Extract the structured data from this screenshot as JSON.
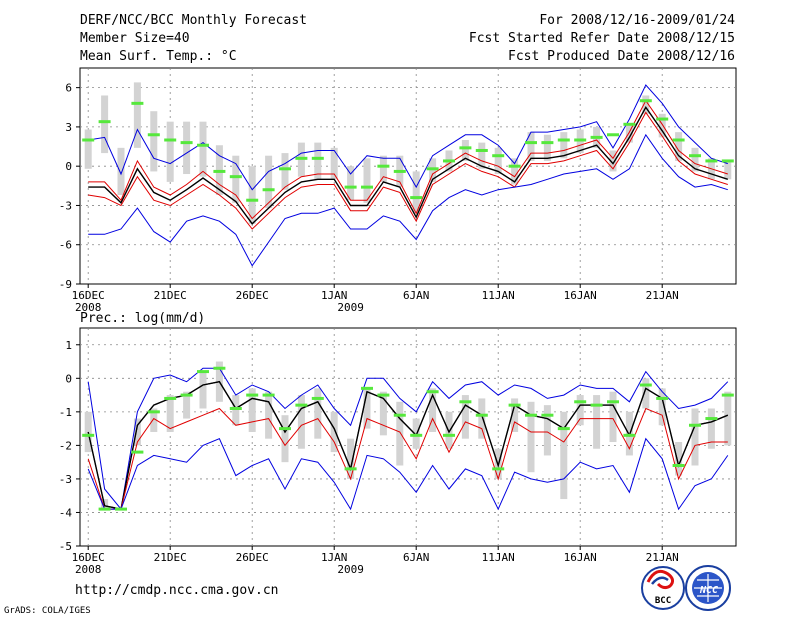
{
  "header": {
    "left_line1": "DERF/NCC/BCC Monthly Forecast",
    "left_line2": "Member Size=40",
    "left_line3": "Mean Surf. Temp.: °C",
    "right_line1": "For 2008/12/16-2009/01/24",
    "right_line2": "Fcst Started Refer Date 2008/12/15",
    "right_line3": "Fcst Produced Date 2008/12/16"
  },
  "footer": {
    "url": "http://cmdp.ncc.cma.gov.cn",
    "credit": "GrADS: COLA/IGES",
    "logo_bcc": "BCC",
    "logo_ncc": "NCC"
  },
  "colors": {
    "bar": "#d3d3d3",
    "median": "#56e83c",
    "envelope": "#0000e0",
    "red": "#e00000",
    "mean": "#000000",
    "grid": "#888888"
  },
  "chart_data": [
    {
      "type": "line",
      "title": "Mean Surf. Temp.: °C",
      "x": [
        1,
        2,
        3,
        4,
        5,
        6,
        7,
        8,
        9,
        10,
        11,
        12,
        13,
        14,
        15,
        16,
        17,
        18,
        19,
        20,
        21,
        22,
        23,
        24,
        25,
        26,
        27,
        28,
        29,
        30,
        31,
        32,
        33,
        34,
        35,
        36,
        37,
        38,
        39,
        40
      ],
      "xlim": [
        0.5,
        40.5
      ],
      "ylim": [
        -9,
        7.5
      ],
      "yticks": [
        -9,
        -6,
        -3,
        0,
        3,
        6
      ],
      "ytick_labels": [
        "-9",
        "-6",
        "-3",
        "0",
        "3",
        "6"
      ],
      "xtick_positions": [
        1,
        6,
        11,
        16,
        21,
        26,
        31,
        36
      ],
      "xtick_labels": [
        "16DEC",
        "21DEC",
        "26DEC",
        "1JAN",
        "6JAN",
        "11JAN",
        "16JAN",
        "21JAN"
      ],
      "year_labels": [
        {
          "x": 1,
          "text": "2008"
        },
        {
          "x": 17,
          "text": "2009"
        }
      ],
      "series": [
        {
          "name": "max",
          "color": "blue",
          "values": [
            2.0,
            2.2,
            -0.6,
            2.8,
            0.6,
            0.2,
            1.0,
            1.8,
            0.8,
            0.2,
            -1.8,
            -0.4,
            0.2,
            1.0,
            1.2,
            1.2,
            -0.6,
            0.8,
            0.6,
            0.6,
            -1.6,
            0.8,
            1.6,
            2.4,
            2.4,
            1.6,
            0.2,
            2.6,
            2.6,
            2.8,
            3.0,
            3.4,
            1.4,
            3.6,
            6.2,
            4.8,
            3.0,
            1.8,
            0.6,
            0.2
          ]
        },
        {
          "name": "upper",
          "color": "red",
          "values": [
            -1.2,
            -1.2,
            -2.6,
            0.4,
            -1.6,
            -2.2,
            -1.4,
            -0.4,
            -1.4,
            -2.2,
            -4.0,
            -2.8,
            -1.6,
            -0.8,
            -0.6,
            -0.6,
            -2.6,
            -2.6,
            -0.8,
            -1.2,
            -3.6,
            -0.6,
            0.2,
            1.0,
            0.4,
            0.0,
            -0.8,
            1.0,
            1.0,
            1.2,
            1.6,
            2.0,
            0.6,
            2.6,
            5.0,
            3.2,
            1.2,
            0.2,
            -0.2,
            -0.6
          ]
        },
        {
          "name": "mean",
          "color": "black",
          "values": [
            -1.6,
            -1.6,
            -2.8,
            -0.2,
            -2.0,
            -2.6,
            -1.8,
            -0.9,
            -1.8,
            -2.7,
            -4.4,
            -3.2,
            -2.0,
            -1.2,
            -1.0,
            -1.0,
            -3.0,
            -3.0,
            -1.2,
            -1.6,
            -3.9,
            -1.0,
            -0.2,
            0.6,
            0.0,
            -0.4,
            -1.2,
            0.6,
            0.6,
            0.8,
            1.2,
            1.6,
            0.2,
            2.2,
            4.5,
            2.7,
            0.8,
            -0.2,
            -0.6,
            -1.0
          ]
        },
        {
          "name": "lower",
          "color": "red",
          "values": [
            -2.2,
            -2.4,
            -3.0,
            -0.8,
            -2.6,
            -3.0,
            -2.2,
            -1.4,
            -2.2,
            -3.2,
            -4.8,
            -3.6,
            -2.4,
            -1.6,
            -1.4,
            -1.4,
            -3.4,
            -3.4,
            -1.6,
            -2.0,
            -4.2,
            -1.4,
            -0.6,
            0.2,
            -0.4,
            -0.8,
            -1.6,
            0.2,
            0.2,
            0.4,
            0.8,
            1.2,
            -0.2,
            1.8,
            4.1,
            2.3,
            0.4,
            -0.6,
            -1.0,
            -1.4
          ]
        },
        {
          "name": "min",
          "color": "blue",
          "values": [
            -5.2,
            -5.2,
            -4.8,
            -3.2,
            -5.0,
            -5.8,
            -4.2,
            -3.8,
            -4.2,
            -5.2,
            -7.6,
            -5.8,
            -4.0,
            -3.6,
            -3.6,
            -3.2,
            -4.8,
            -4.8,
            -3.8,
            -4.2,
            -5.6,
            -3.4,
            -2.4,
            -1.8,
            -2.2,
            -1.8,
            -1.6,
            -1.4,
            -1.0,
            -0.6,
            -0.4,
            -0.2,
            -1.0,
            -0.2,
            2.4,
            0.6,
            -0.8,
            -1.6,
            -1.4,
            -1.8
          ]
        },
        {
          "name": "box_top",
          "color": "lightgray",
          "values": [
            2.8,
            5.4,
            1.4,
            6.4,
            4.2,
            3.4,
            3.4,
            3.4,
            1.6,
            0.8,
            0.0,
            0.8,
            1.0,
            1.8,
            1.8,
            1.4,
            0.0,
            0.6,
            0.8,
            0.8,
            -0.4,
            0.6,
            1.2,
            2.0,
            1.8,
            1.4,
            0.6,
            2.6,
            2.4,
            2.6,
            2.8,
            3.0,
            1.2,
            3.2,
            5.4,
            4.0,
            2.6,
            1.4,
            0.6,
            0.4
          ]
        },
        {
          "name": "box_bottom",
          "color": "lightgray",
          "values": [
            -0.2,
            1.0,
            -2.2,
            1.4,
            -0.4,
            -1.2,
            -0.6,
            -0.8,
            -2.2,
            -2.8,
            -4.4,
            -3.2,
            -1.8,
            -0.8,
            -1.0,
            -1.0,
            -2.6,
            -2.8,
            -1.2,
            -1.6,
            -3.6,
            -1.2,
            -0.4,
            0.4,
            -0.2,
            -0.6,
            -1.4,
            0.4,
            0.4,
            0.6,
            1.0,
            1.4,
            -0.4,
            1.8,
            4.0,
            2.2,
            0.4,
            -0.4,
            -1.0,
            -1.0
          ]
        },
        {
          "name": "median",
          "color": "green",
          "values": [
            2.0,
            3.4,
            null,
            4.8,
            2.4,
            2.0,
            1.8,
            1.6,
            -0.4,
            -0.8,
            -2.6,
            -1.8,
            -0.2,
            0.6,
            0.6,
            null,
            -1.6,
            -1.6,
            0.0,
            -0.4,
            -2.4,
            -0.2,
            0.4,
            1.4,
            1.2,
            0.8,
            0.0,
            1.8,
            1.8,
            2.0,
            2.0,
            2.2,
            2.4,
            3.2,
            5.0,
            3.6,
            2.0,
            0.8,
            0.4,
            0.4
          ]
        }
      ]
    },
    {
      "type": "line",
      "title": "Prec.: log(mm/d)",
      "x": [
        1,
        2,
        3,
        4,
        5,
        6,
        7,
        8,
        9,
        10,
        11,
        12,
        13,
        14,
        15,
        16,
        17,
        18,
        19,
        20,
        21,
        22,
        23,
        24,
        25,
        26,
        27,
        28,
        29,
        30,
        31,
        32,
        33,
        34,
        35,
        36,
        37,
        38,
        39,
        40
      ],
      "xlim": [
        0.5,
        40.5
      ],
      "ylim": [
        -5,
        1.5
      ],
      "yticks": [
        -5,
        -4,
        -3,
        -2,
        -1,
        0,
        1
      ],
      "ytick_labels": [
        "-5",
        "-4",
        "-3",
        "-2",
        "-1",
        "0",
        "1"
      ],
      "xtick_positions": [
        1,
        6,
        11,
        16,
        21,
        26,
        31,
        36
      ],
      "xtick_labels": [
        "16DEC",
        "21DEC",
        "26DEC",
        "1JAN",
        "6JAN",
        "11JAN",
        "16JAN",
        "21JAN"
      ],
      "year_labels": [
        {
          "x": 1,
          "text": "2008"
        },
        {
          "x": 17,
          "text": "2009"
        }
      ],
      "series": [
        {
          "name": "max",
          "color": "blue",
          "values": [
            -0.1,
            -3.3,
            -3.9,
            -1.0,
            0.0,
            0.1,
            -0.1,
            0.3,
            0.3,
            -0.5,
            -0.2,
            -0.4,
            -0.9,
            -0.5,
            -0.2,
            -0.9,
            -1.4,
            0.0,
            0.0,
            -0.6,
            -1.0,
            -0.1,
            -0.6,
            -0.2,
            -0.1,
            -0.5,
            -0.2,
            -0.3,
            -0.6,
            -0.5,
            -0.2,
            -0.3,
            -0.3,
            -0.7,
            0.2,
            -0.4,
            -0.9,
            -0.8,
            -0.6,
            -0.1
          ]
        },
        {
          "name": "upper",
          "color": "black",
          "values": [
            -1.6,
            -3.8,
            -3.9,
            -1.4,
            -0.8,
            -0.6,
            -0.5,
            -0.2,
            -0.1,
            -0.9,
            -0.6,
            -0.7,
            -1.6,
            -0.9,
            -0.7,
            -1.5,
            -2.7,
            -0.4,
            -0.6,
            -1.2,
            -1.7,
            -0.5,
            -1.6,
            -0.8,
            -1.1,
            -2.6,
            -0.8,
            -1.1,
            -1.2,
            -1.5,
            -0.8,
            -0.8,
            -0.8,
            -1.7,
            -0.3,
            -0.6,
            -2.6,
            -1.4,
            -1.3,
            -1.1
          ]
        },
        {
          "name": "mean",
          "color": "black",
          "values": [
            -1.6,
            -3.8,
            -3.9,
            -1.4,
            -0.8,
            -0.6,
            -0.5,
            -0.2,
            -0.1,
            -0.9,
            -0.6,
            -0.7,
            -1.6,
            -0.9,
            -0.7,
            -1.5,
            -2.7,
            -0.4,
            -0.6,
            -1.2,
            -1.7,
            -0.5,
            -1.6,
            -0.8,
            -1.1,
            -2.6,
            -0.8,
            -1.1,
            -1.2,
            -1.5,
            -0.8,
            -0.8,
            -0.8,
            -1.7,
            -0.3,
            -0.6,
            -2.6,
            -1.4,
            -1.3,
            -1.1
          ]
        },
        {
          "name": "lower_red",
          "color": "red",
          "values": [
            -2.4,
            -3.9,
            -3.9,
            -1.9,
            -1.2,
            -1.5,
            -1.3,
            -1.1,
            -0.9,
            -1.4,
            -1.3,
            -1.2,
            -2.0,
            -1.4,
            -1.2,
            -1.9,
            -3.0,
            -1.2,
            -1.4,
            -1.6,
            -2.4,
            -1.2,
            -2.2,
            -1.3,
            -1.5,
            -3.0,
            -1.3,
            -1.6,
            -1.6,
            -1.9,
            -1.2,
            -1.2,
            -1.2,
            -2.1,
            -0.9,
            -1.1,
            -3.0,
            -2.0,
            -1.9,
            -1.9
          ]
        },
        {
          "name": "min",
          "color": "blue",
          "values": [
            -2.7,
            -3.9,
            -3.9,
            -2.6,
            -2.3,
            -2.4,
            -2.5,
            -2.0,
            -1.8,
            -2.9,
            -2.6,
            -2.4,
            -3.3,
            -2.4,
            -2.5,
            -3.1,
            -3.9,
            -2.3,
            -2.4,
            -2.8,
            -3.4,
            -2.6,
            -3.3,
            -2.7,
            -2.9,
            -3.9,
            -2.8,
            -3.0,
            -3.1,
            -3.0,
            -2.5,
            -2.7,
            -2.6,
            -3.4,
            -1.8,
            -2.4,
            -3.9,
            -3.2,
            -3.0,
            -2.3
          ]
        },
        {
          "name": "box_top",
          "color": "lightgray",
          "values": [
            -1.0,
            -3.6,
            -3.9,
            -1.2,
            -0.9,
            -0.5,
            -0.4,
            0.2,
            0.5,
            -0.5,
            -0.3,
            -0.4,
            -1.1,
            -0.5,
            -0.3,
            -1.0,
            -1.8,
            -0.3,
            -0.4,
            -0.7,
            -1.2,
            -0.3,
            -1.0,
            -0.5,
            -0.6,
            -2.1,
            -0.6,
            -0.7,
            -0.8,
            -1.0,
            -0.5,
            -0.5,
            -0.4,
            -1.0,
            0.0,
            -0.3,
            -1.9,
            -0.9,
            -0.9,
            -0.4
          ]
        },
        {
          "name": "box_bottom",
          "color": "lightgray",
          "values": [
            -2.2,
            -3.9,
            -3.9,
            -2.0,
            -1.6,
            -1.6,
            -1.2,
            -0.9,
            -0.7,
            -1.4,
            -1.6,
            -1.8,
            -2.5,
            -2.1,
            -1.8,
            -2.2,
            -3.0,
            -1.5,
            -1.7,
            -2.6,
            -2.1,
            -1.6,
            -2.1,
            -1.8,
            -1.8,
            -3.0,
            -1.6,
            -2.8,
            -2.3,
            -3.6,
            -1.4,
            -2.1,
            -1.9,
            -2.3,
            -0.9,
            -1.4,
            -2.9,
            -2.6,
            -2.1,
            -2.0
          ]
        },
        {
          "name": "median",
          "color": "green",
          "values": [
            -1.7,
            -3.9,
            -3.9,
            -2.2,
            -1.0,
            -0.6,
            -0.5,
            0.2,
            0.3,
            -0.9,
            -0.5,
            -0.5,
            -1.5,
            -0.8,
            -0.6,
            null,
            -2.7,
            -0.3,
            -0.5,
            -1.1,
            -1.7,
            -0.4,
            -1.7,
            -0.7,
            -1.1,
            -2.7,
            -0.8,
            -1.1,
            -1.1,
            -1.5,
            -0.7,
            -0.8,
            -0.7,
            -1.7,
            -0.2,
            -0.6,
            -2.6,
            -1.4,
            -1.2,
            -0.5
          ]
        }
      ]
    }
  ],
  "panel2_title": "Prec.: log(mm/d)"
}
